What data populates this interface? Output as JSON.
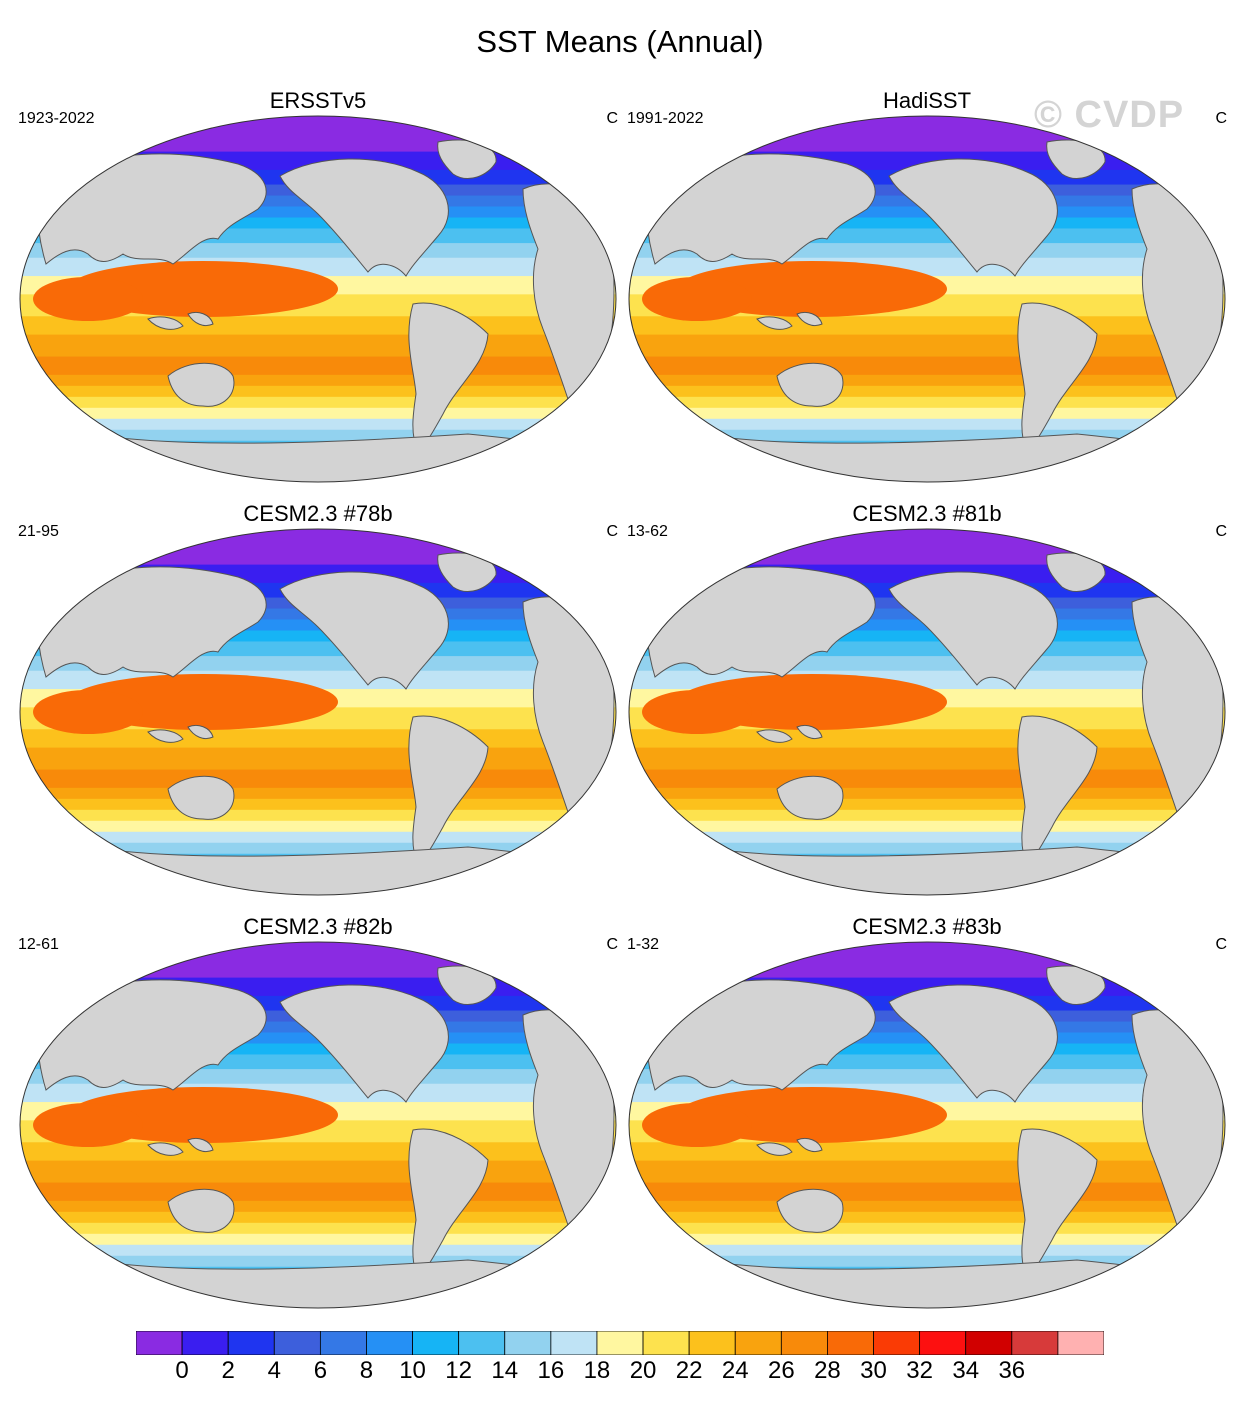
{
  "title": "SST Means (Annual)",
  "watermark": "© CVDP",
  "panels": [
    {
      "title": "ERSSTv5",
      "period": "1923-2022",
      "units": "C"
    },
    {
      "title": "HadiSST",
      "period": "1991-2022",
      "units": "C"
    },
    {
      "title": "CESM2.3 #78b",
      "period": "21-95",
      "units": "C"
    },
    {
      "title": "CESM2.3 #81b",
      "period": "13-62",
      "units": "C"
    },
    {
      "title": "CESM2.3 #82b",
      "period": "12-61",
      "units": "C"
    },
    {
      "title": "CESM2.3 #83b",
      "period": "1-32",
      "units": "C"
    }
  ],
  "colorbar": {
    "labels": [
      "0",
      "2",
      "4",
      "6",
      "8",
      "10",
      "12",
      "14",
      "16",
      "18",
      "20",
      "22",
      "24",
      "26",
      "28",
      "30",
      "32",
      "34",
      "36"
    ],
    "colors": [
      "#8a2be2",
      "#3a1ef0",
      "#1f35f0",
      "#3d5fdc",
      "#3478e6",
      "#2590f5",
      "#16b4f5",
      "#4cc0f0",
      "#92d2ef",
      "#bfe3f5",
      "#fff7a0",
      "#fde24e",
      "#fcc11c",
      "#f9a30e",
      "#f88a0a",
      "#f96a07",
      "#fa3b05",
      "#fd1010",
      "#d10000",
      "#d73a3a",
      "#ffb1b1"
    ]
  },
  "colors": {
    "land": "#d3d3d3",
    "coast": "#555555"
  }
}
